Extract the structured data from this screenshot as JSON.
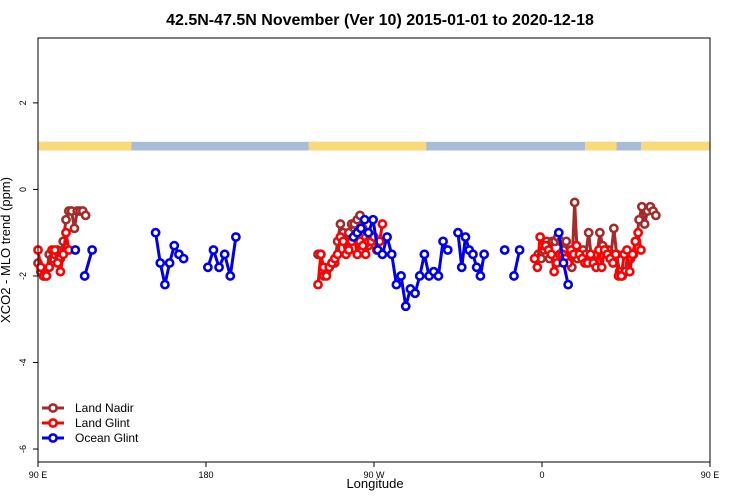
{
  "chart_data": {
    "type": "line",
    "title": "42.5N-47.5N November (Ver 10)   2015-01-01 to 2020-12-18",
    "xlabel": "Longitude",
    "ylabel": "XCO2 - MLO trend (ppm)",
    "xlim": [
      90,
      450
    ],
    "ylim": [
      -6.3,
      3.5
    ],
    "grid": false,
    "legend_position": "bottom-left",
    "x_ticks": [
      {
        "value": 90,
        "label": "90 E"
      },
      {
        "value": 180,
        "label": "180"
      },
      {
        "value": 270,
        "label": "90 W"
      },
      {
        "value": 360,
        "label": "0"
      },
      {
        "value": 450,
        "label": "90 E"
      },
      {
        "value": 540,
        "label": "180"
      }
    ],
    "y_ticks": [
      {
        "value": 2,
        "label": "2"
      },
      {
        "value": 0,
        "label": "0"
      },
      {
        "value": -2,
        "label": "-2"
      },
      {
        "value": -4,
        "label": "-4"
      },
      {
        "value": -6,
        "label": "-6"
      }
    ],
    "surface_band": {
      "y_range": [
        0.9,
        1.1
      ],
      "land_color": "#f9d97a",
      "ocean_color": "#a8bcd8",
      "land_segments": [
        [
          90,
          140
        ],
        [
          235,
          298
        ],
        [
          383,
          400
        ],
        [
          413,
          465
        ],
        [
          490,
          504
        ],
        [
          515,
          540
        ]
      ]
    },
    "series": [
      {
        "name": "Land Nadir",
        "color": "#a52a2a",
        "segments": [
          [
            [
              90,
              -1.7
            ],
            [
              91.5,
              -1.9
            ],
            [
              93,
              -2.0
            ],
            [
              94.5,
              -2.0
            ],
            [
              96,
              -1.5
            ],
            [
              97.5,
              -1.6
            ],
            [
              99,
              -1.5
            ],
            [
              100.5,
              -1.4
            ],
            [
              102,
              -1.6
            ],
            [
              103.5,
              -1.2
            ],
            [
              105,
              -0.7
            ],
            [
              106.5,
              -0.5
            ],
            [
              108,
              -0.5
            ],
            [
              109.5,
              -0.9
            ],
            [
              111,
              -0.5
            ],
            [
              112.5,
              -0.5
            ],
            [
              114,
              -0.5
            ],
            [
              115.5,
              -0.6
            ]
          ],
          [
            [
              240,
              -1.5
            ],
            [
              241.5,
              -1.5
            ],
            [
              243,
              -2.0
            ],
            [
              244.5,
              -1.9
            ],
            [
              246,
              -1.8
            ],
            [
              247.5,
              -1.7
            ],
            [
              249,
              -1.7
            ],
            [
              250.5,
              -1.2
            ],
            [
              252,
              -0.8
            ],
            [
              253.5,
              -1.0
            ],
            [
              255,
              -1.2
            ],
            [
              256.5,
              -1.0
            ],
            [
              258,
              -0.8
            ],
            [
              259.5,
              -0.8
            ],
            [
              261,
              -0.7
            ],
            [
              262.5,
              -0.6
            ],
            [
              264,
              -0.9
            ],
            [
              265.5,
              -1.1
            ],
            [
              267,
              -1.3
            ]
          ],
          [
            [
              358,
              -1.5
            ],
            [
              359.5,
              -1.6
            ],
            [
              361,
              -1.4
            ],
            [
              362.5,
              -1.2
            ],
            [
              364,
              -1.6
            ],
            [
              365.5,
              -1.2
            ],
            [
              367,
              -1.2
            ],
            [
              368.5,
              -1.1
            ],
            [
              370,
              -1.2
            ],
            [
              371.5,
              -1.4
            ],
            [
              373,
              -1.2
            ],
            [
              374.5,
              -1.7
            ],
            [
              376,
              -1.8
            ],
            [
              377.5,
              -0.3
            ],
            [
              379,
              -1.6
            ],
            [
              380.5,
              -1.5
            ],
            [
              382,
              -1.4
            ],
            [
              383.5,
              -1.5
            ],
            [
              385,
              -1.0
            ],
            [
              386.5,
              -1.6
            ],
            [
              388,
              -1.7
            ],
            [
              389.5,
              -1.5
            ],
            [
              391,
              -1.0
            ],
            [
              392.5,
              -1.3
            ],
            [
              394,
              -1.4
            ],
            [
              395.5,
              -1.4
            ],
            [
              397,
              -1.5
            ],
            [
              398.5,
              -0.9
            ],
            [
              400,
              -1.5
            ],
            [
              401.5,
              -1.9
            ],
            [
              403,
              -2.0
            ],
            [
              404.5,
              -1.9
            ],
            [
              406,
              -1.5
            ],
            [
              407.5,
              -1.6
            ],
            [
              409,
              -1.5
            ],
            [
              410.5,
              -1.2
            ],
            [
              412,
              -0.7
            ],
            [
              413.5,
              -0.4
            ],
            [
              415,
              -0.8
            ],
            [
              416.5,
              -0.5
            ],
            [
              418,
              -0.4
            ],
            [
              419.5,
              -0.5
            ],
            [
              421,
              -0.6
            ]
          ]
        ]
      },
      {
        "name": "Land Glint",
        "color": "#ff0000",
        "segments": [
          [
            [
              90,
              -1.4
            ],
            [
              91.5,
              -1.8
            ],
            [
              93,
              -2.0
            ],
            [
              94.5,
              -2.0
            ],
            [
              96,
              -1.8
            ],
            [
              97.5,
              -1.4
            ],
            [
              99,
              -1.4
            ],
            [
              100.5,
              -1.7
            ],
            [
              102,
              -1.9
            ],
            [
              103.5,
              -1.5
            ],
            [
              105,
              -1.0
            ],
            [
              106.5,
              -1.4
            ]
          ],
          [
            [
              240,
              -2.2
            ],
            [
              241.5,
              -1.5
            ],
            [
              243,
              -1.8
            ],
            [
              244.5,
              -2.0
            ],
            [
              246,
              -1.8
            ],
            [
              247.5,
              -1.7
            ],
            [
              249,
              -1.6
            ],
            [
              250.5,
              -1.5
            ],
            [
              252,
              -1.1
            ],
            [
              253.5,
              -1.2
            ],
            [
              255,
              -1.5
            ],
            [
              256.5,
              -1.4
            ],
            [
              258,
              -1.2
            ],
            [
              259.5,
              -1.1
            ],
            [
              261,
              -1.5
            ],
            [
              262.5,
              -1.2
            ],
            [
              264,
              -1.3
            ],
            [
              265.5,
              -1.5
            ],
            [
              267,
              -1.2
            ],
            [
              268.5,
              -1.2
            ],
            [
              270,
              -1.1
            ],
            [
              271.5,
              -1.4
            ],
            [
              273,
              -1.2
            ],
            [
              274.5,
              -0.8
            ]
          ],
          [
            [
              356,
              -1.6
            ],
            [
              357.5,
              -1.8
            ],
            [
              359,
              -1.1
            ],
            [
              360.5,
              -1.3
            ],
            [
              362,
              -1.3
            ],
            [
              363.5,
              -1.4
            ],
            [
              365,
              -1.5
            ],
            [
              366.5,
              -1.9
            ],
            [
              368,
              -1.7
            ],
            [
              369.5,
              -1.5
            ],
            [
              371,
              -1.5
            ],
            [
              372.5,
              -1.6
            ],
            [
              374,
              -1.7
            ],
            [
              375.5,
              -1.4
            ],
            [
              377,
              -1.5
            ],
            [
              378.5,
              -1.3
            ],
            [
              380,
              -1.5
            ],
            [
              381.5,
              -1.6
            ],
            [
              383,
              -1.7
            ],
            [
              384.5,
              -1.7
            ],
            [
              386,
              -1.5
            ],
            [
              387.5,
              -1.7
            ],
            [
              389,
              -1.8
            ],
            [
              390.5,
              -1.4
            ],
            [
              392,
              -1.8
            ],
            [
              393.5,
              -1.4
            ],
            [
              395,
              -1.5
            ],
            [
              396.5,
              -1.6
            ],
            [
              398,
              -1.7
            ],
            [
              399.5,
              -1.5
            ],
            [
              401,
              -2.0
            ],
            [
              402.5,
              -2.0
            ],
            [
              404,
              -1.5
            ],
            [
              405.5,
              -1.4
            ],
            [
              407,
              -1.9
            ],
            [
              408.5,
              -1.5
            ],
            [
              410,
              -1.2
            ],
            [
              411.5,
              -1.0
            ],
            [
              413,
              -1.4
            ]
          ]
        ]
      },
      {
        "name": "Ocean Glint",
        "color": "#0000ee",
        "segments": [
          [
            [
              110,
              -1.4
            ]
          ],
          [
            [
              115,
              -2.0
            ],
            [
              119,
              -1.4
            ]
          ],
          [
            [
              153,
              -1.0
            ],
            [
              155.5,
              -1.7
            ],
            [
              158,
              -2.2
            ],
            [
              160.5,
              -1.7
            ],
            [
              163,
              -1.3
            ],
            [
              165.5,
              -1.5
            ],
            [
              168,
              -1.6
            ]
          ],
          [
            [
              181,
              -1.8
            ],
            [
              184,
              -1.4
            ],
            [
              187,
              -1.8
            ],
            [
              190,
              -1.5
            ],
            [
              193,
              -2.0
            ],
            [
              196,
              -1.1
            ]
          ],
          [
            [
              259,
              -1.1
            ],
            [
              261,
              -1.0
            ],
            [
              263,
              -0.9
            ],
            [
              265,
              -0.7
            ]
          ],
          [
            [
              267,
              -1.0
            ],
            [
              269.5,
              -0.7
            ],
            [
              272,
              -1.4
            ],
            [
              274.5,
              -1.5
            ],
            [
              277,
              -1.1
            ],
            [
              279.5,
              -1.5
            ],
            [
              282,
              -2.2
            ],
            [
              284.5,
              -2.0
            ],
            [
              287,
              -2.7
            ],
            [
              289.5,
              -2.3
            ],
            [
              292,
              -2.4
            ],
            [
              294.5,
              -2.0
            ],
            [
              297,
              -1.5
            ],
            [
              299.5,
              -2.0
            ],
            [
              302,
              -1.9
            ],
            [
              304.5,
              -2.0
            ],
            [
              307,
              -1.2
            ],
            [
              309.5,
              -1.4
            ]
          ],
          [
            [
              315,
              -1.0
            ],
            [
              317,
              -1.8
            ],
            [
              319,
              -1.1
            ],
            [
              321,
              -1.4
            ],
            [
              323,
              -1.5
            ],
            [
              325,
              -1.8
            ],
            [
              327,
              -2.0
            ],
            [
              329,
              -1.5
            ]
          ],
          [
            [
              340,
              -1.4
            ]
          ],
          [
            [
              345,
              -2.0
            ],
            [
              348,
              -1.4
            ]
          ],
          [
            [
              369,
              -1.0
            ],
            [
              371.5,
              -1.7
            ],
            [
              374,
              -2.2
            ]
          ]
        ]
      }
    ]
  }
}
